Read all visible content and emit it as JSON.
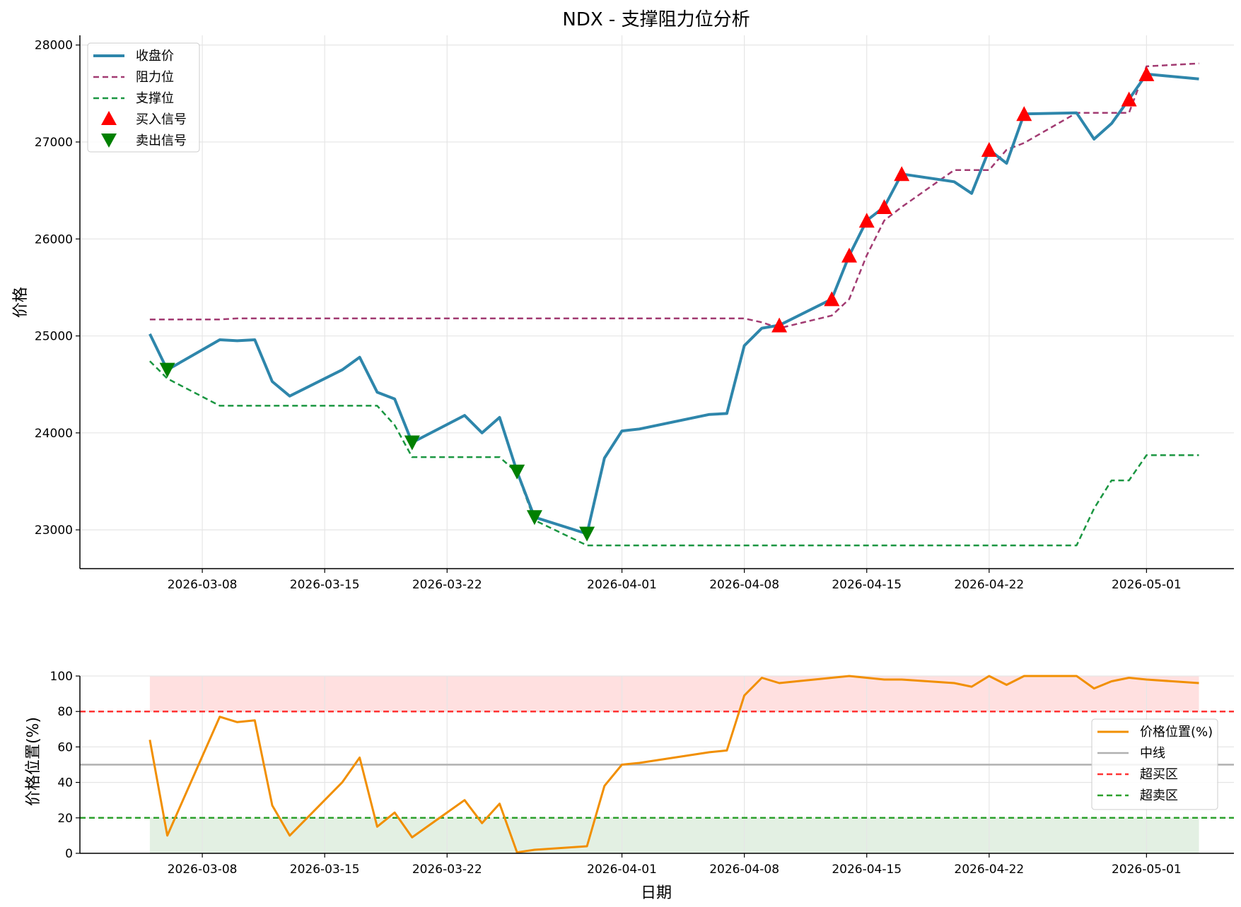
{
  "title": "NDX - 支撑阻力位分析",
  "colors": {
    "close": "#2e86ab",
    "resistance": "#a23b72",
    "support": "#1a9641",
    "buy": "#ff0000",
    "sell": "#008000",
    "position": "#f18f01",
    "midline": "#b0b0b0",
    "overbought": "#ff3333",
    "oversold": "#2ca02c",
    "overbought_fill": "#ffe0e0",
    "oversold_fill": "#e3f0e3"
  },
  "chart_data": [
    {
      "type": "line",
      "ylabel": "价格",
      "xlabel": "",
      "ylim": [
        22600,
        28100
      ],
      "xlim": [
        "2026-03-01",
        "2026-05-06"
      ],
      "grid": true,
      "legend_position": "top-left",
      "x_ticks": [
        "2026-03-08",
        "2026-03-15",
        "2026-03-22",
        "2026-04-01",
        "2026-04-08",
        "2026-04-15",
        "2026-04-22",
        "2026-05-01"
      ],
      "y_ticks": [
        23000,
        24000,
        25000,
        26000,
        27000,
        28000
      ],
      "dates": [
        "2026-03-05",
        "2026-03-06",
        "2026-03-09",
        "2026-03-10",
        "2026-03-11",
        "2026-03-12",
        "2026-03-13",
        "2026-03-16",
        "2026-03-17",
        "2026-03-18",
        "2026-03-19",
        "2026-03-20",
        "2026-03-23",
        "2026-03-24",
        "2026-03-25",
        "2026-03-26",
        "2026-03-27",
        "2026-03-30",
        "2026-03-31",
        "2026-04-01",
        "2026-04-02",
        "2026-04-06",
        "2026-04-07",
        "2026-04-08",
        "2026-04-09",
        "2026-04-10",
        "2026-04-13",
        "2026-04-14",
        "2026-04-15",
        "2026-04-16",
        "2026-04-17",
        "2026-04-20",
        "2026-04-21",
        "2026-04-22",
        "2026-04-23",
        "2026-04-24",
        "2026-04-27",
        "2026-04-28",
        "2026-04-29",
        "2026-04-30",
        "2026-05-01",
        "2026-05-04"
      ],
      "series": [
        {
          "name": "收盘价",
          "values": [
            25020,
            24650,
            24960,
            24950,
            24960,
            24530,
            24380,
            24650,
            24780,
            24420,
            24350,
            23900,
            24180,
            24000,
            24160,
            23600,
            23130,
            22960,
            23740,
            24020,
            24040,
            24190,
            24200,
            24900,
            25080,
            25110,
            25380,
            25830,
            26190,
            26330,
            26670,
            26590,
            26470,
            26920,
            26780,
            27290,
            27300,
            27030,
            27190,
            27440,
            27700,
            27650
          ]
        },
        {
          "name": "阻力位",
          "values": [
            25170,
            25170,
            25170,
            25180,
            25180,
            25180,
            25180,
            25180,
            25180,
            25180,
            25180,
            25180,
            25180,
            25180,
            25180,
            25180,
            25180,
            25180,
            25180,
            25180,
            25180,
            25180,
            25180,
            25180,
            25140,
            25080,
            25210,
            25380,
            25830,
            26190,
            26330,
            26710,
            26710,
            26710,
            26920,
            26990,
            27300,
            27300,
            27300,
            27300,
            27780,
            27810
          ]
        },
        {
          "name": "支撑位",
          "values": [
            24740,
            24560,
            24280,
            24280,
            24280,
            24280,
            24280,
            24280,
            24280,
            24280,
            24080,
            23750,
            23750,
            23750,
            23750,
            23590,
            23100,
            22840,
            22840,
            22840,
            22840,
            22840,
            22840,
            22840,
            22840,
            22840,
            22840,
            22840,
            22840,
            22840,
            22840,
            22840,
            22840,
            22840,
            22840,
            22840,
            22840,
            23220,
            23510,
            23510,
            23770,
            23770
          ]
        }
      ],
      "buy_signals": {
        "name": "买入信号",
        "points": [
          [
            "2026-04-10",
            25110
          ],
          [
            "2026-04-13",
            25380
          ],
          [
            "2026-04-14",
            25830
          ],
          [
            "2026-04-15",
            26190
          ],
          [
            "2026-04-16",
            26330
          ],
          [
            "2026-04-17",
            26670
          ],
          [
            "2026-04-22",
            26920
          ],
          [
            "2026-04-24",
            27290
          ],
          [
            "2026-04-30",
            27440
          ],
          [
            "2026-05-01",
            27700
          ]
        ]
      },
      "sell_signals": {
        "name": "卖出信号",
        "points": [
          [
            "2026-03-06",
            24650
          ],
          [
            "2026-03-20",
            23900
          ],
          [
            "2026-03-26",
            23600
          ],
          [
            "2026-03-27",
            23130
          ],
          [
            "2026-03-30",
            22960
          ]
        ]
      }
    },
    {
      "type": "line",
      "ylabel": "价格位置(%)",
      "xlabel": "日期",
      "ylim": [
        0,
        100
      ],
      "xlim": [
        "2026-03-01",
        "2026-05-06"
      ],
      "grid": true,
      "legend_position": "right",
      "y_ticks": [
        0,
        20,
        40,
        60,
        80,
        100
      ],
      "x_ticks": [
        "2026-03-08",
        "2026-03-15",
        "2026-03-22",
        "2026-04-01",
        "2026-04-08",
        "2026-04-15",
        "2026-04-22",
        "2026-05-01"
      ],
      "series": [
        {
          "name": "价格位置(%)",
          "values": [
            64,
            10,
            77,
            74,
            75,
            27,
            10,
            40,
            54,
            15,
            23,
            9,
            30,
            17,
            28,
            0.5,
            2,
            4,
            38,
            50,
            51,
            57,
            58,
            89,
            99,
            96,
            99,
            100,
            99,
            98,
            98,
            96,
            94,
            100,
            95,
            100,
            100,
            93,
            97,
            99,
            98,
            96
          ]
        }
      ],
      "reference_lines": [
        {
          "name": "中线",
          "y": 50
        },
        {
          "name": "超买区",
          "y": 80
        },
        {
          "name": "超卖区",
          "y": 20
        }
      ],
      "bands": [
        {
          "from": 80,
          "to": 100,
          "label": "overbought"
        },
        {
          "from": 0,
          "to": 20,
          "label": "oversold"
        }
      ]
    }
  ]
}
